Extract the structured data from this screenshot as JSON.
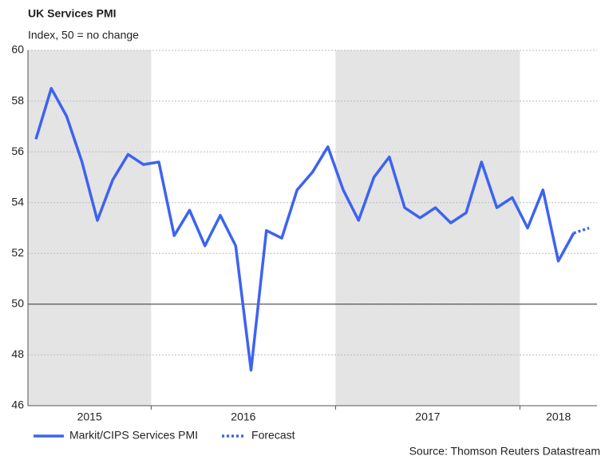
{
  "chart_data": {
    "type": "line",
    "title": "UK Services PMI",
    "subtitle": "Index, 50 = no change",
    "categories": [
      null,
      null,
      null,
      null,
      null,
      null,
      null,
      null,
      null,
      null,
      null,
      null,
      null,
      null,
      null,
      null,
      null,
      null,
      null,
      null,
      null,
      null,
      null,
      null,
      null,
      null,
      null,
      null,
      null,
      null,
      null,
      null,
      null,
      null,
      null,
      null,
      null
    ],
    "x_groups": [
      "2015",
      "2016",
      "2017",
      "2018"
    ],
    "series": [
      {
        "name": "Markit/CIPS Services PMI",
        "color": "#3d63f0",
        "style": "solid",
        "values": [
          56.5,
          58.5,
          57.4,
          55.6,
          53.3,
          54.9,
          55.9,
          55.5,
          55.6,
          52.7,
          53.7,
          52.3,
          53.5,
          52.3,
          47.4,
          52.9,
          52.6,
          54.5,
          55.2,
          56.2,
          54.5,
          53.3,
          55.0,
          55.8,
          53.8,
          53.4,
          53.8,
          53.2,
          53.6,
          55.6,
          53.8,
          54.2,
          53.0,
          54.5,
          51.7,
          52.8,
          null
        ]
      },
      {
        "name": "Forecast",
        "color": "#3d63f0",
        "style": "dotted",
        "values": [
          null,
          null,
          null,
          null,
          null,
          null,
          null,
          null,
          null,
          null,
          null,
          null,
          null,
          null,
          null,
          null,
          null,
          null,
          null,
          null,
          null,
          null,
          null,
          null,
          null,
          null,
          null,
          null,
          null,
          null,
          null,
          null,
          null,
          null,
          null,
          52.8,
          53.0
        ]
      }
    ],
    "ylim": [
      46,
      60
    ],
    "yticks": [
      46,
      48,
      50,
      52,
      54,
      56,
      58,
      60
    ],
    "grid": true,
    "reference_line": 50,
    "source": "Source: Thomson Reuters Datastream"
  }
}
